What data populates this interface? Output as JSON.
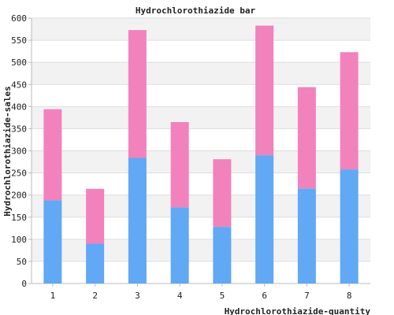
{
  "chart_data": {
    "type": "bar",
    "stacked": true,
    "title": "Hydrochlorothiazide bar",
    "xlabel": "Hydrochlorothiazide-quantity",
    "ylabel": "Hydrochlorothiazide-sales",
    "categories": [
      "1",
      "2",
      "3",
      "4",
      "5",
      "6",
      "7",
      "8"
    ],
    "series": [
      {
        "values": [
          188,
          90,
          284,
          172,
          128,
          290,
          215,
          258
        ]
      },
      {
        "values": [
          206,
          124,
          289,
          193,
          153,
          293,
          229,
          265
        ]
      }
    ],
    "ylim": [
      0,
      600
    ],
    "yticks": [
      "0",
      "50",
      "100",
      "150",
      "200",
      "250",
      "300",
      "350",
      "400",
      "450",
      "500",
      "550",
      "600"
    ],
    "grid": true,
    "colors": {
      "series": [
        "#61a8f5",
        "#f282bc"
      ],
      "band": "#f2f2f2",
      "grid": "#dddddd",
      "axis": "#bbbbbb"
    }
  }
}
